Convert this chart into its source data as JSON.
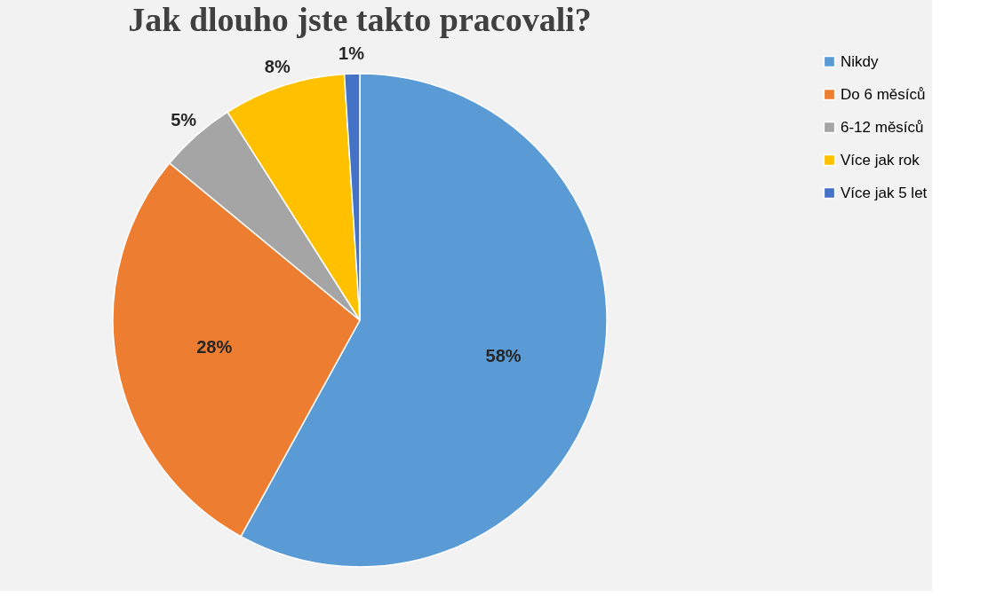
{
  "chart_data": {
    "type": "pie",
    "title": "Jak dlouho jste takto pracovali?",
    "categories": [
      "Nikdy",
      "Do 6 měsíců",
      "6-12 měsíců",
      "Více jak rok",
      "Více jak 5 let"
    ],
    "values": [
      58,
      28,
      5,
      8,
      1
    ],
    "colors": [
      "#5b9bd5",
      "#ed7d31",
      "#a5a5a5",
      "#ffc000",
      "#4472c4"
    ],
    "value_labels": [
      "58%",
      "28%",
      "5%",
      "8%",
      "1%"
    ],
    "legend": "right"
  }
}
